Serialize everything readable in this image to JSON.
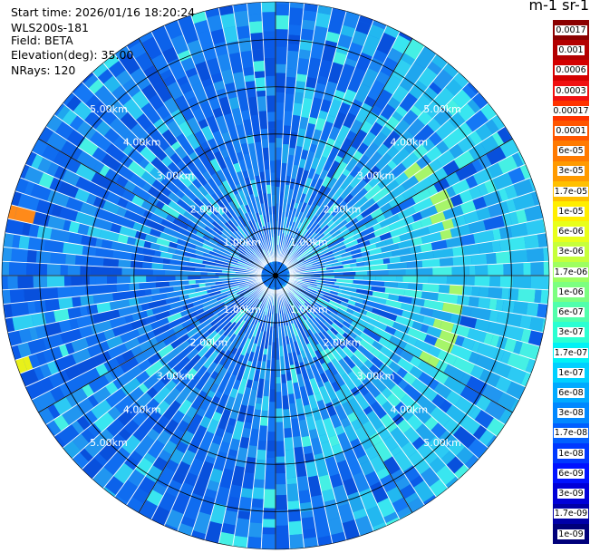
{
  "header": {
    "start_time": "Start time: 2026/01/16 18:20:24",
    "instrument": "WLS200s-181",
    "field": "Field: BETA",
    "elevation": "Elevation(deg): 35.00",
    "nrays": "NRays: 120"
  },
  "colorbar": {
    "unit_label": "m-1 sr-1",
    "labels": [
      "0.0017",
      "0.001",
      "0.0006",
      "0.0003",
      "0.00017",
      "0.0001",
      "6e-05",
      "3e-05",
      "1.7e-05",
      "1e-05",
      "6e-06",
      "3e-06",
      "1.7e-06",
      "1e-06",
      "6e-07",
      "3e-07",
      "1.7e-07",
      "1e-07",
      "6e-08",
      "3e-08",
      "1.7e-08",
      "1e-08",
      "6e-09",
      "3e-09",
      "1.7e-09",
      "1e-09"
    ],
    "colors": [
      "#8b0000",
      "#b30000",
      "#d40000",
      "#f01010",
      "#ff3300",
      "#ff5500",
      "#ff7a00",
      "#ff9a00",
      "#ffc000",
      "#ffee00",
      "#e8ff1a",
      "#c6ff3a",
      "#9dff60",
      "#7cff80",
      "#50ffac",
      "#2affd2",
      "#00f2f5",
      "#00d0ff",
      "#00aaff",
      "#0088ff",
      "#0060ff",
      "#0038ff",
      "#0012ff",
      "#0000d8",
      "#0000a8",
      "#00007a"
    ]
  },
  "chart_data": {
    "type": "heatmap",
    "projection": "polar (PPI scan)",
    "field": "BETA",
    "elevation_deg": 35.0,
    "nrays": 120,
    "range_rings_km": [
      1.0,
      2.0,
      3.0,
      4.0,
      5.0
    ],
    "ring_labels": [
      "1.00km",
      "2.00km",
      "3.00km",
      "4.00km",
      "5.00km"
    ],
    "max_range_km": 5.8,
    "radial_spokes_deg": [
      0,
      30,
      60,
      90,
      120,
      150,
      180,
      210,
      240,
      270,
      300,
      330
    ],
    "value_range": [
      1e-09,
      0.0017
    ],
    "scale": "log",
    "dominant_values": "1e-08 to 1e-07 (blue) across most of the scan, higher 1e-07 to 1e-06 (cyan) on east side",
    "features": [
      {
        "description": "enhanced backscatter arc (green-yellow)",
        "range_km": 3.6,
        "azimuth_deg_from": 45,
        "azimuth_deg_to": 120,
        "value": "1e-06 to 1e-05"
      },
      {
        "description": "strong return spot west (red/yellow)",
        "range_km": 5.5,
        "azimuth_deg": 284,
        "value": "3e-05"
      },
      {
        "description": "return spot west-southwest (yellow)",
        "range_km": 5.6,
        "azimuth_deg": 250,
        "value": "1e-05"
      }
    ]
  }
}
